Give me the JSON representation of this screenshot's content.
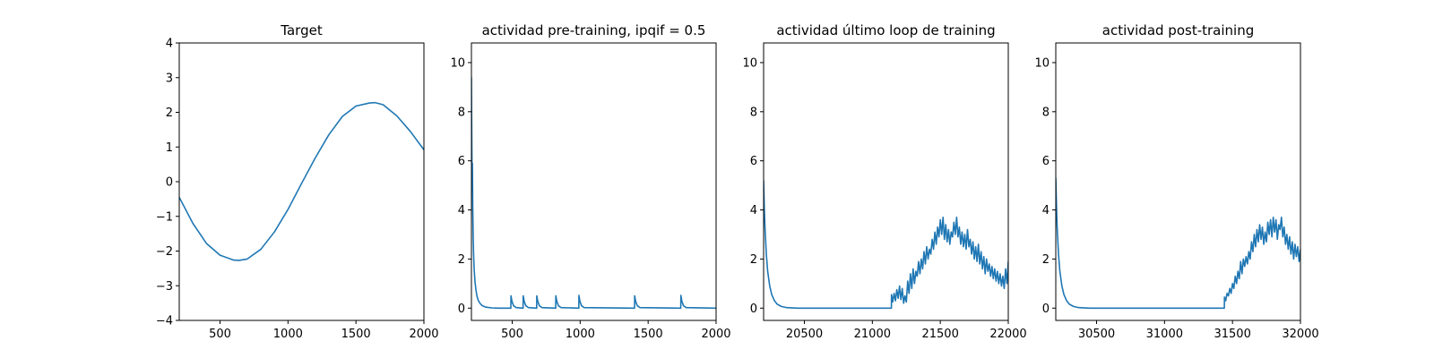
{
  "figure": {
    "background": "#ffffff",
    "line_color": "#1f77b4"
  },
  "chart_data": [
    {
      "type": "line",
      "title": "Target",
      "xlim": [
        200,
        2000
      ],
      "ylim": [
        -4,
        4
      ],
      "xticks": [
        500,
        1000,
        1500,
        2000
      ],
      "yticks": [
        -4,
        -3,
        -2,
        -1,
        0,
        1,
        2,
        3,
        4
      ],
      "xlabel": "",
      "ylabel": "",
      "grid": false,
      "series": [
        {
          "x": [
            200,
            300,
            400,
            500,
            600,
            640,
            700,
            800,
            900,
            1000,
            1100,
            1200,
            1300,
            1400,
            1500,
            1600,
            1640,
            1700,
            1800,
            1900,
            2000
          ],
          "y": [
            -0.45,
            -1.2,
            -1.78,
            -2.12,
            -2.26,
            -2.27,
            -2.23,
            -1.95,
            -1.45,
            -0.8,
            -0.05,
            0.68,
            1.35,
            1.88,
            2.18,
            2.27,
            2.28,
            2.22,
            1.9,
            1.45,
            0.92
          ]
        }
      ]
    },
    {
      "type": "line",
      "title": "actividad pre-training, ipqif = 0.5",
      "xlim": [
        200,
        2000
      ],
      "ylim": [
        -0.5,
        10.8
      ],
      "xticks": [
        500,
        1000,
        1500,
        2000
      ],
      "yticks": [
        0,
        2,
        4,
        6,
        8,
        10
      ],
      "xlabel": "",
      "ylabel": "",
      "grid": false,
      "series": [
        {
          "x": [
            200,
            201,
            203,
            205,
            207,
            210,
            213,
            216,
            220,
            226,
            232,
            240,
            250,
            265,
            280,
            300,
            320,
            350,
            400,
            490,
            491,
            498,
            510,
            530,
            580,
            581,
            588,
            600,
            620,
            680,
            681,
            688,
            700,
            720,
            820,
            821,
            828,
            840,
            860,
            990,
            991,
            998,
            1010,
            1030,
            1400,
            1401,
            1408,
            1420,
            1440,
            1740,
            1741,
            1748,
            1760,
            1780,
            2000
          ],
          "y": [
            9.4,
            8.2,
            6.5,
            5.0,
            5.9,
            4.0,
            2.9,
            2.2,
            1.6,
            1.1,
            0.8,
            0.5,
            0.32,
            0.18,
            0.1,
            0.05,
            0.03,
            0.01,
            0.0,
            0.0,
            0.5,
            0.28,
            0.1,
            0.02,
            0.0,
            0.5,
            0.28,
            0.1,
            0.02,
            0.0,
            0.5,
            0.28,
            0.1,
            0.02,
            0.0,
            0.5,
            0.28,
            0.1,
            0.02,
            0.0,
            0.52,
            0.28,
            0.1,
            0.02,
            0.0,
            0.5,
            0.28,
            0.1,
            0.02,
            0.0,
            0.52,
            0.28,
            0.1,
            0.02,
            0.0
          ]
        }
      ]
    },
    {
      "type": "line",
      "title": "actividad último loop de training",
      "xlim": [
        20200,
        22000
      ],
      "ylim": [
        -0.5,
        10.8
      ],
      "xticks": [
        20500,
        21000,
        21500,
        22000
      ],
      "yticks": [
        0,
        2,
        4,
        6,
        8,
        10
      ],
      "xlabel": "",
      "ylabel": "",
      "grid": false,
      "series": [
        {
          "x": [
            20200,
            20205,
            20210,
            20220,
            20230,
            20245,
            20260,
            20280,
            20300,
            20330,
            20370,
            20450,
            20700,
            21000,
            21140,
            21141,
            21150,
            21160,
            21170,
            21180,
            21190,
            21200,
            21210,
            21220,
            21230,
            21240,
            21250,
            21260,
            21270,
            21280,
            21290,
            21300,
            21310,
            21320,
            21330,
            21340,
            21350,
            21360,
            21370,
            21380,
            21390,
            21400,
            21410,
            21420,
            21430,
            21440,
            21450,
            21460,
            21470,
            21480,
            21490,
            21500,
            21510,
            21520,
            21530,
            21540,
            21550,
            21560,
            21570,
            21580,
            21590,
            21600,
            21610,
            21620,
            21630,
            21640,
            21650,
            21660,
            21670,
            21680,
            21690,
            21700,
            21710,
            21720,
            21730,
            21740,
            21750,
            21760,
            21770,
            21780,
            21790,
            21800,
            21810,
            21820,
            21830,
            21840,
            21850,
            21860,
            21870,
            21880,
            21890,
            21900,
            21910,
            21920,
            21930,
            21940,
            21950,
            21960,
            21970,
            21980,
            21990,
            22000
          ],
          "y": [
            5.2,
            4.1,
            3.3,
            2.2,
            1.5,
            0.9,
            0.55,
            0.3,
            0.16,
            0.07,
            0.02,
            0.0,
            0.0,
            0.0,
            0.0,
            0.55,
            0.25,
            0.6,
            0.3,
            0.75,
            0.4,
            0.9,
            0.35,
            0.8,
            0.2,
            0.5,
            0.25,
            1.1,
            0.6,
            1.4,
            0.8,
            1.6,
            1.0,
            1.5,
            1.3,
            1.9,
            1.4,
            2.0,
            1.6,
            2.3,
            1.8,
            2.5,
            2.0,
            2.4,
            2.2,
            2.8,
            2.4,
            3.1,
            2.6,
            3.3,
            2.9,
            3.6,
            3.0,
            3.7,
            2.8,
            3.4,
            2.7,
            3.2,
            2.6,
            3.1,
            2.9,
            3.5,
            3.0,
            3.7,
            2.9,
            3.3,
            2.6,
            3.1,
            2.5,
            3.0,
            2.4,
            3.2,
            2.5,
            2.8,
            2.2,
            2.7,
            2.0,
            2.5,
            1.9,
            2.6,
            1.8,
            2.3,
            1.6,
            2.1,
            1.4,
            2.0,
            1.5,
            1.8,
            1.3,
            1.7,
            1.2,
            1.6,
            1.1,
            1.5,
            1.0,
            1.4,
            0.9,
            1.3,
            0.8,
            1.6,
            1.0,
            1.9
          ]
        }
      ]
    },
    {
      "type": "line",
      "title": "actividad post-training",
      "xlim": [
        30200,
        32000
      ],
      "ylim": [
        -0.5,
        10.8
      ],
      "xticks": [
        30500,
        31000,
        31500,
        32000
      ],
      "yticks": [
        0,
        2,
        4,
        6,
        8,
        10
      ],
      "xlabel": "",
      "ylabel": "",
      "grid": false,
      "series": [
        {
          "x": [
            30200,
            30205,
            30210,
            30220,
            30230,
            30245,
            30260,
            30280,
            30300,
            30330,
            30370,
            30450,
            30800,
            31200,
            31440,
            31441,
            31450,
            31460,
            31470,
            31480,
            31490,
            31500,
            31510,
            31520,
            31530,
            31540,
            31550,
            31560,
            31570,
            31580,
            31590,
            31600,
            31610,
            31620,
            31630,
            31640,
            31650,
            31660,
            31670,
            31680,
            31690,
            31700,
            31710,
            31720,
            31730,
            31740,
            31750,
            31760,
            31770,
            31780,
            31790,
            31800,
            31810,
            31820,
            31830,
            31840,
            31850,
            31860,
            31870,
            31880,
            31890,
            31900,
            31910,
            31920,
            31930,
            31940,
            31950,
            31960,
            31970,
            31980,
            31990,
            32000
          ],
          "y": [
            5.3,
            4.2,
            3.3,
            2.2,
            1.5,
            0.9,
            0.55,
            0.3,
            0.16,
            0.07,
            0.02,
            0.0,
            0.0,
            0.0,
            0.0,
            0.45,
            0.3,
            0.6,
            0.5,
            0.8,
            0.6,
            1.0,
            0.8,
            1.3,
            1.0,
            1.5,
            1.2,
            1.9,
            1.4,
            2.0,
            1.7,
            2.1,
            1.8,
            2.3,
            2.0,
            2.7,
            2.3,
            3.0,
            2.5,
            3.2,
            2.7,
            3.4,
            2.8,
            3.3,
            2.6,
            3.1,
            2.7,
            3.5,
            3.0,
            3.6,
            2.9,
            3.7,
            3.1,
            3.6,
            2.8,
            3.4,
            3.2,
            3.7,
            2.9,
            3.3,
            2.6,
            3.0,
            2.4,
            2.9,
            2.2,
            2.7,
            2.0,
            2.6,
            2.1,
            2.5,
            1.9,
            2.4
          ]
        }
      ]
    }
  ]
}
